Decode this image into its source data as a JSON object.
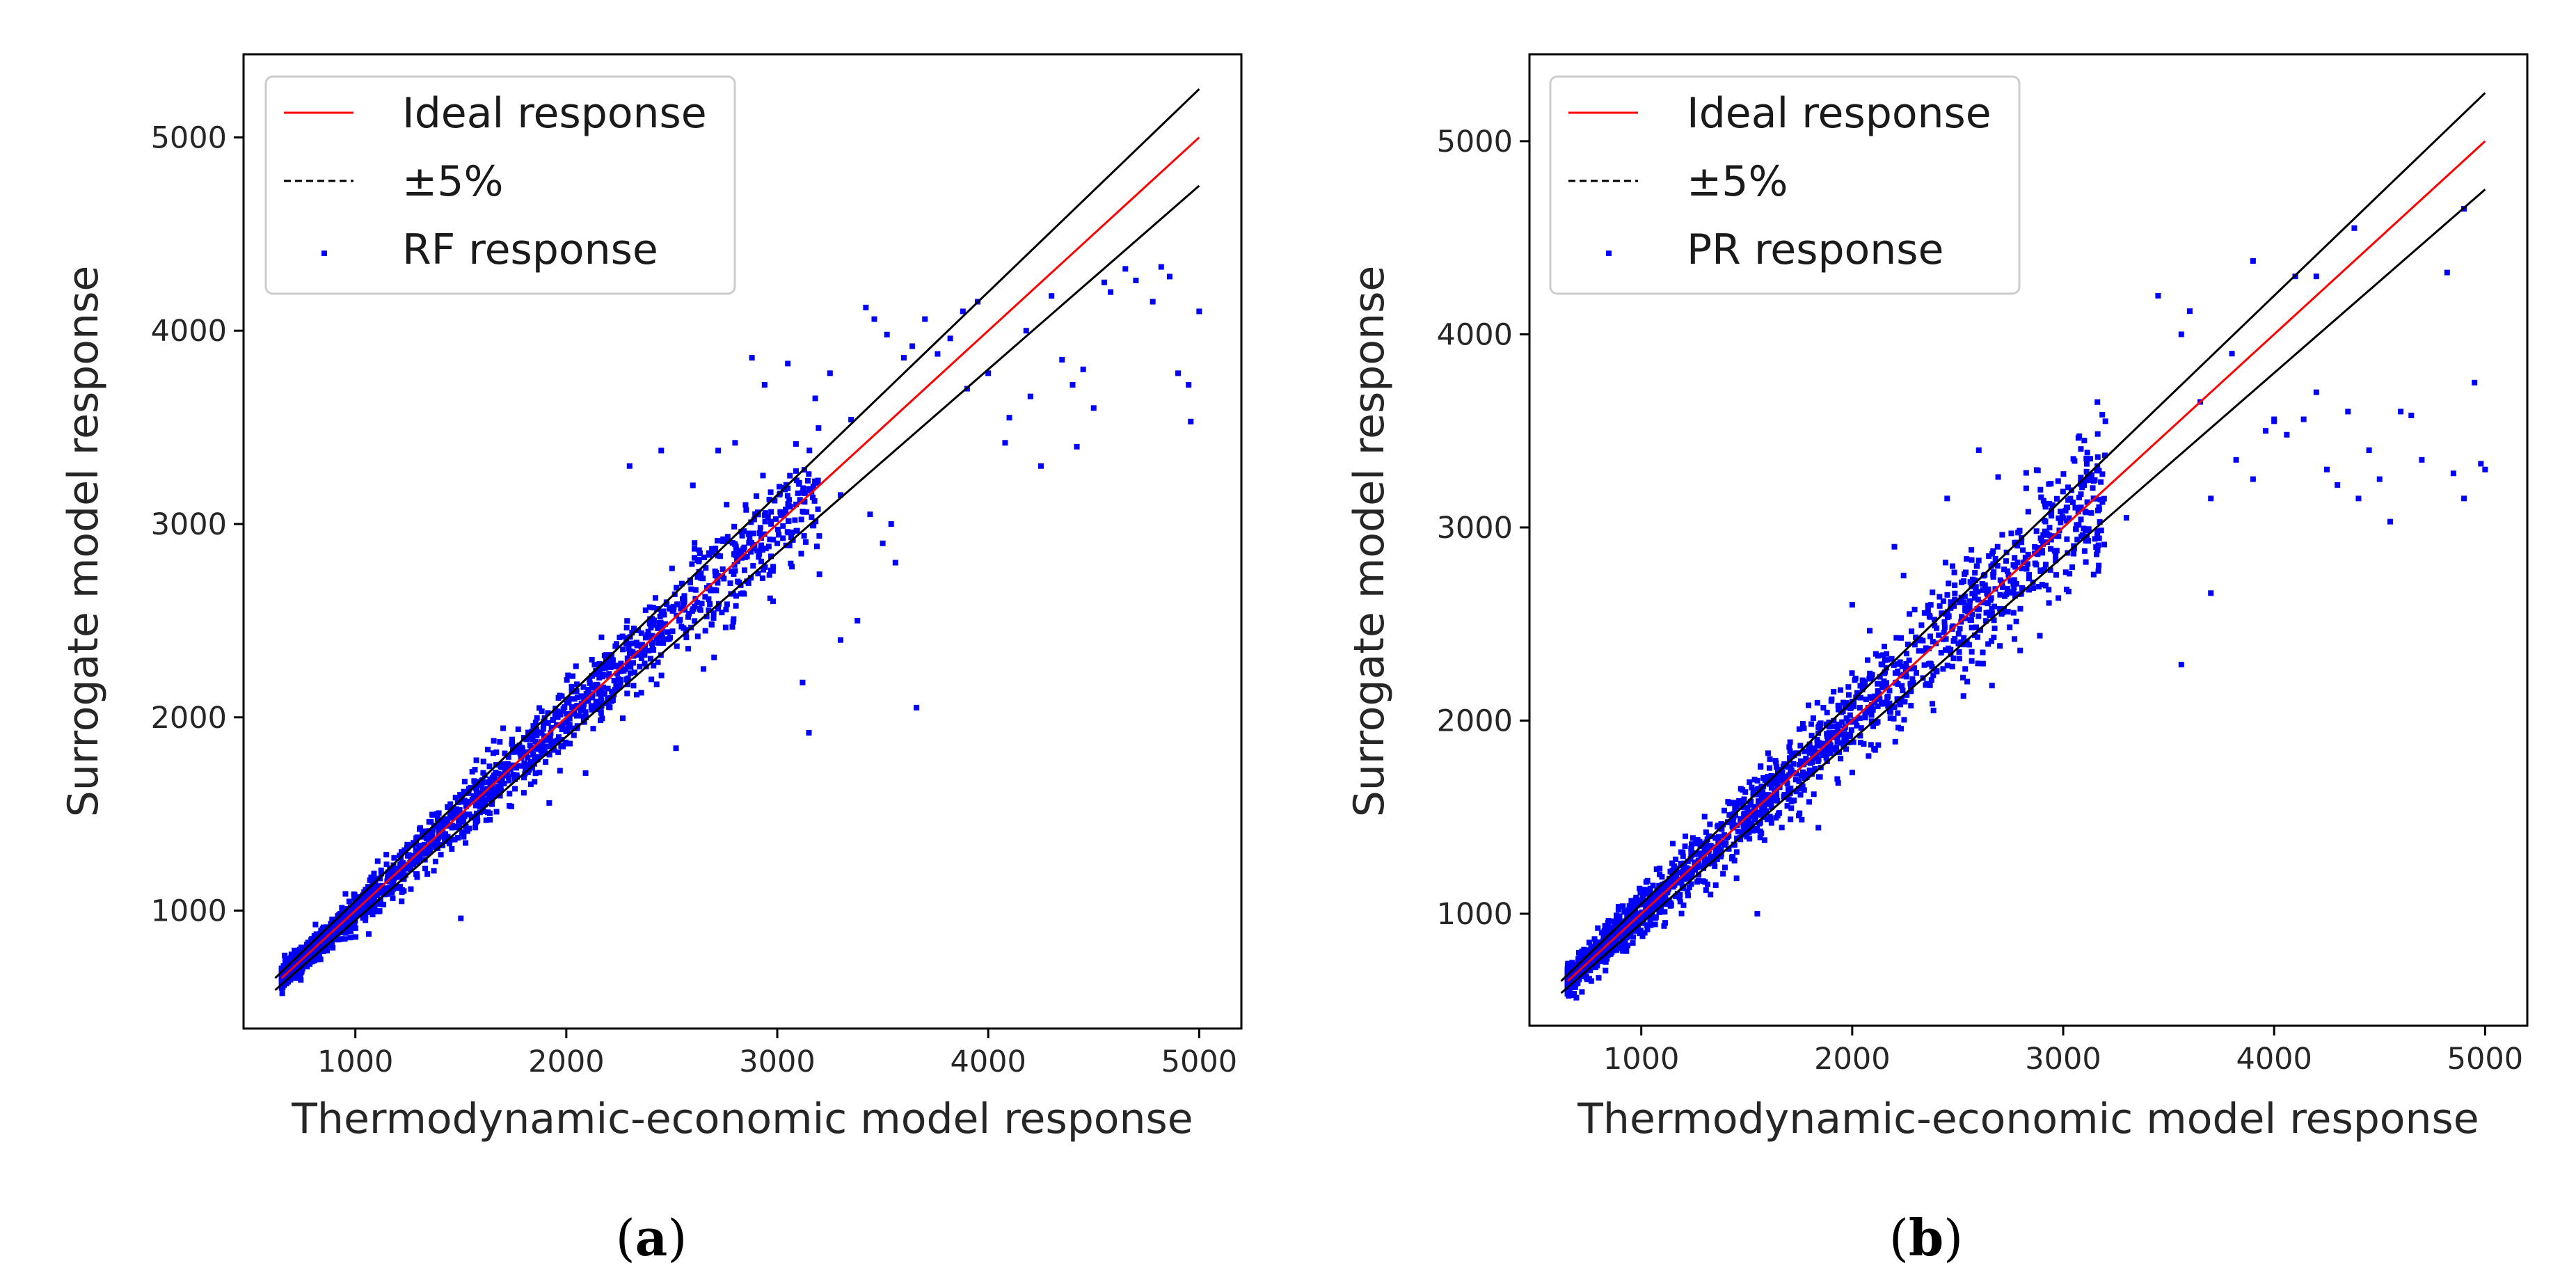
{
  "chart_data": [
    {
      "type": "scatter",
      "panel": "a",
      "caption": {
        "open": "(",
        "letter": "a",
        "close": ")"
      },
      "xlabel": "Thermodynamic-economic model response",
      "ylabel": "Surrogate model response",
      "xlim": [
        470,
        5200
      ],
      "ylim": [
        390,
        5430
      ],
      "xticks": [
        1000,
        2000,
        3000,
        4000,
        5000
      ],
      "yticks": [
        1000,
        2000,
        3000,
        4000,
        5000
      ],
      "legend_position": "top-left",
      "legend": [
        {
          "label": "Ideal response",
          "style": "solid",
          "color": "#ff0000"
        },
        {
          "label": "±5%",
          "style": "dashed",
          "color": "#000000"
        },
        {
          "label": "RF response",
          "style": "marker",
          "color": "#0000ff"
        }
      ],
      "lines": [
        {
          "name": "Ideal response",
          "x": [
            650,
            5000
          ],
          "y": [
            650,
            5000
          ],
          "color": "#ff0000"
        },
        {
          "name": "+5%",
          "x": [
            620,
            5000
          ],
          "y": [
            651,
            5250
          ],
          "color": "#000000"
        },
        {
          "name": "-5%",
          "x": [
            620,
            5000
          ],
          "y": [
            589,
            4750
          ],
          "color": "#000000"
        }
      ],
      "series": [
        {
          "name": "RF response",
          "color": "#0000ff",
          "x": [
            2880,
            2940,
            3050,
            3180,
            3250,
            3350,
            3420,
            3460,
            3520,
            3600,
            3640,
            3700,
            3760,
            3820,
            3880,
            3950,
            4000,
            4080,
            4180,
            4200,
            4250,
            4300,
            4350,
            4400,
            4450,
            4500,
            4550,
            4580,
            4650,
            4700,
            4780,
            4820,
            4860,
            4900,
            4950,
            4960,
            5000,
            3120,
            3380,
            3540,
            3200,
            3660,
            2980,
            3300,
            3060,
            3500,
            2720,
            2600,
            2800,
            3000,
            3300,
            1500,
            2520,
            3150,
            2650,
            3560,
            3440,
            4420,
            3900,
            4100,
            2450,
            2300,
            2760
          ],
          "y": [
            3860,
            3720,
            3830,
            3650,
            3780,
            3540,
            4120,
            4060,
            3980,
            3860,
            3920,
            4060,
            3880,
            3960,
            4100,
            4150,
            3780,
            3420,
            4000,
            3660,
            3300,
            4180,
            3850,
            3720,
            3800,
            3600,
            4250,
            4200,
            4320,
            4260,
            4150,
            4330,
            4280,
            3780,
            3720,
            3530,
            4100,
            2180,
            2500,
            3000,
            2740,
            2050,
            2600,
            2400,
            3250,
            2900,
            3380,
            3200,
            3420,
            2900,
            3150,
            960,
            1840,
            1920,
            2250,
            2800,
            3050,
            3400,
            3700,
            3550,
            3380,
            3300,
            3100
          ]
        }
      ]
    },
    {
      "type": "scatter",
      "panel": "b",
      "caption": {
        "open": "(",
        "letter": "b",
        "close": ")"
      },
      "xlabel": "Thermodynamic-economic model response",
      "ylabel": "Surrogate model response",
      "xlim": [
        470,
        5200
      ],
      "ylim": [
        420,
        5450
      ],
      "xticks": [
        1000,
        2000,
        3000,
        4000,
        5000
      ],
      "yticks": [
        1000,
        2000,
        3000,
        4000,
        5000
      ],
      "legend_position": "top-left",
      "legend": [
        {
          "label": "Ideal response",
          "style": "solid",
          "color": "#ff0000"
        },
        {
          "label": "±5%",
          "style": "dashed",
          "color": "#000000"
        },
        {
          "label": "PR response",
          "style": "marker",
          "color": "#0000ff"
        }
      ],
      "lines": [
        {
          "name": "Ideal response",
          "x": [
            650,
            5000
          ],
          "y": [
            650,
            5000
          ],
          "color": "#ff0000"
        },
        {
          "name": "+5%",
          "x": [
            620,
            5000
          ],
          "y": [
            651,
            5250
          ],
          "color": "#000000"
        },
        {
          "name": "-5%",
          "x": [
            620,
            5000
          ],
          "y": [
            589,
            4750
          ],
          "color": "#000000"
        }
      ],
      "series": [
        {
          "name": "PR response",
          "color": "#0000ff",
          "x": [
            3560,
            3700,
            3820,
            3900,
            3960,
            4000,
            4060,
            4140,
            4250,
            4300,
            4350,
            4400,
            4450,
            4500,
            4550,
            4600,
            4650,
            4700,
            4820,
            4850,
            4900,
            4950,
            4980,
            5000,
            3650,
            3800,
            3450,
            3200,
            3100,
            3600,
            4200,
            4380,
            4100,
            3900,
            3560,
            1550,
            2000,
            2200,
            2450,
            2600,
            3300,
            3700,
            4000,
            4200,
            4900
          ],
          "y": [
            2290,
            2660,
            3350,
            3250,
            3500,
            3560,
            3480,
            3560,
            3300,
            3220,
            3600,
            3150,
            3400,
            3250,
            3030,
            3600,
            3580,
            3350,
            4320,
            3280,
            3150,
            3750,
            3330,
            3300,
            3650,
            3900,
            4200,
            3550,
            3450,
            4120,
            4300,
            4550,
            4300,
            4380,
            4000,
            1000,
            2600,
            2900,
            3150,
            3400,
            3050,
            3150,
            3550,
            3700,
            4650
          ]
        }
      ]
    }
  ]
}
